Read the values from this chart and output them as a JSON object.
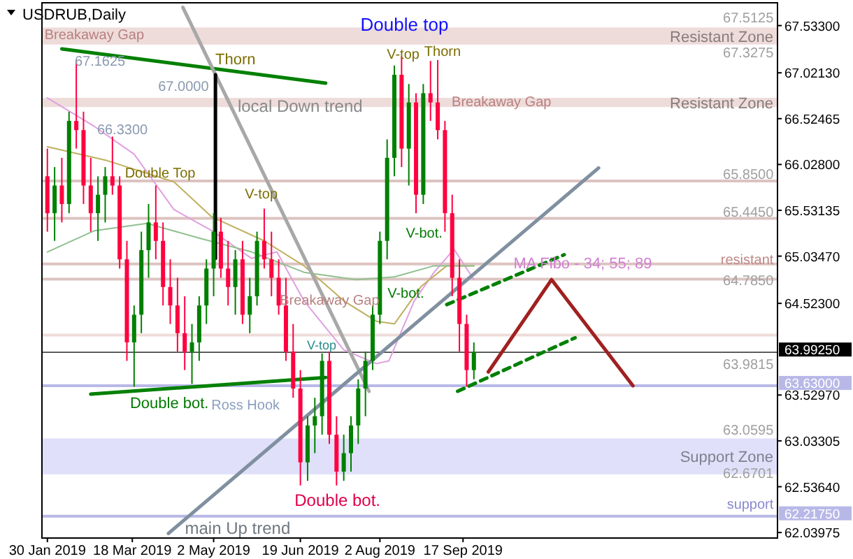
{
  "chart_data": {
    "type": "candlestick",
    "title": "USDRUB,Daily",
    "x": [
      "2019-01-30",
      "2019-02-03",
      "2019-02-07",
      "2019-02-11",
      "2019-02-15",
      "2019-02-19",
      "2019-02-23",
      "2019-02-27",
      "2019-03-03",
      "2019-03-07",
      "2019-03-11",
      "2019-03-15",
      "2019-03-19",
      "2019-03-23",
      "2019-03-27",
      "2019-03-31",
      "2019-04-04",
      "2019-04-08",
      "2019-04-12",
      "2019-04-16",
      "2019-04-20",
      "2019-04-24",
      "2019-04-28",
      "2019-05-02",
      "2019-05-06",
      "2019-05-10",
      "2019-05-14",
      "2019-05-18",
      "2019-05-22",
      "2019-05-26",
      "2019-05-30",
      "2019-06-03",
      "2019-06-07",
      "2019-06-11",
      "2019-06-15",
      "2019-06-19",
      "2019-06-23",
      "2019-06-27",
      "2019-07-01",
      "2019-07-05",
      "2019-07-09",
      "2019-07-13",
      "2019-07-17",
      "2019-07-21",
      "2019-07-25",
      "2019-07-29",
      "2019-08-02",
      "2019-08-06",
      "2019-08-10",
      "2019-08-14",
      "2019-08-18",
      "2019-08-22",
      "2019-08-26",
      "2019-08-30",
      "2019-09-03",
      "2019-09-07",
      "2019-09-11",
      "2019-09-15",
      "2019-09-19",
      "2019-09-23"
    ],
    "ohlc": [
      [
        65.9,
        66.2,
        65.3,
        65.5
      ],
      [
        65.5,
        66.0,
        65.2,
        65.8
      ],
      [
        65.8,
        66.1,
        65.4,
        65.6
      ],
      [
        65.6,
        66.6,
        65.5,
        66.5
      ],
      [
        66.5,
        67.1625,
        66.2,
        66.4
      ],
      [
        66.4,
        66.6,
        65.6,
        65.8
      ],
      [
        65.8,
        66.1,
        65.3,
        65.5
      ],
      [
        65.5,
        65.9,
        65.2,
        65.7
      ],
      [
        65.7,
        66.0,
        65.4,
        65.9
      ],
      [
        65.9,
        66.33,
        65.7,
        65.8
      ],
      [
        65.8,
        65.9,
        64.9,
        65.0
      ],
      [
        65.0,
        65.2,
        63.9,
        64.1
      ],
      [
        64.1,
        64.5,
        63.62,
        64.4
      ],
      [
        64.4,
        65.3,
        64.2,
        65.1
      ],
      [
        65.1,
        65.6,
        64.8,
        65.4
      ],
      [
        65.4,
        65.8,
        65.0,
        65.2
      ],
      [
        65.2,
        65.4,
        64.5,
        64.7
      ],
      [
        64.7,
        65.0,
        64.3,
        64.5
      ],
      [
        64.5,
        64.8,
        64.0,
        64.2
      ],
      [
        64.2,
        64.6,
        63.8,
        64.0
      ],
      [
        64.0,
        64.3,
        63.65,
        64.1
      ],
      [
        64.1,
        64.6,
        63.9,
        64.5
      ],
      [
        64.5,
        65.0,
        64.3,
        64.9
      ],
      [
        64.9,
        65.5,
        64.6,
        65.3
      ],
      [
        65.3,
        65.45,
        64.8,
        64.9
      ],
      [
        64.9,
        65.2,
        64.5,
        64.7
      ],
      [
        64.7,
        65.1,
        64.4,
        65.0
      ],
      [
        65.0,
        65.2,
        64.3,
        64.4
      ],
      [
        64.4,
        64.8,
        64.2,
        64.6
      ],
      [
        64.6,
        65.3,
        64.5,
        65.2
      ],
      [
        65.2,
        65.55,
        64.9,
        65.0
      ],
      [
        65.0,
        65.3,
        64.6,
        64.8
      ],
      [
        64.8,
        65.0,
        64.4,
        64.5
      ],
      [
        64.5,
        64.8,
        63.9,
        64.0
      ],
      [
        64.0,
        64.3,
        63.5,
        63.6
      ],
      [
        63.6,
        63.8,
        62.55,
        62.8
      ],
      [
        62.8,
        63.3,
        62.6,
        63.2
      ],
      [
        63.2,
        63.5,
        62.9,
        63.3
      ],
      [
        63.3,
        63.98,
        63.1,
        63.9
      ],
      [
        63.9,
        64.0,
        63.0,
        63.1
      ],
      [
        63.1,
        63.3,
        62.55,
        62.7
      ],
      [
        62.7,
        63.1,
        62.6,
        62.9
      ],
      [
        62.9,
        63.3,
        62.7,
        63.2
      ],
      [
        63.2,
        63.7,
        63.0,
        63.6
      ],
      [
        63.6,
        64.0,
        63.3,
        63.9
      ],
      [
        63.9,
        64.5,
        63.8,
        64.4
      ],
      [
        64.4,
        65.3,
        64.3,
        65.2
      ],
      [
        65.2,
        66.3,
        65.0,
        66.1
      ],
      [
        66.1,
        67.1,
        65.9,
        67.0
      ],
      [
        67.0,
        67.2,
        66.0,
        66.2
      ],
      [
        66.2,
        66.9,
        65.8,
        66.7
      ],
      [
        66.7,
        66.8,
        65.5,
        65.7
      ],
      [
        65.7,
        66.9,
        65.6,
        66.8
      ],
      [
        66.8,
        67.15,
        66.5,
        66.7
      ],
      [
        66.7,
        67.16,
        66.3,
        66.4
      ],
      [
        66.4,
        66.5,
        65.3,
        65.5
      ],
      [
        65.5,
        65.7,
        64.6,
        64.8
      ],
      [
        64.8,
        65.0,
        64.0,
        64.3
      ],
      [
        64.3,
        64.4,
        63.62,
        63.8
      ],
      [
        63.8,
        64.1,
        63.7,
        63.9925
      ]
    ],
    "colors": [
      "#ff0040",
      "#008000",
      "#ff0040",
      "#008000",
      "#ff0040",
      "#ff0040",
      "#ff0040",
      "#008000",
      "#008000",
      "#ff0040",
      "#ff0040",
      "#ff0040",
      "#008000",
      "#008000",
      "#008000",
      "#ff0040",
      "#ff0040",
      "#ff0040",
      "#ff0040",
      "#ff0040",
      "#008000",
      "#008000",
      "#008000",
      "#008000",
      "#ff0040",
      "#ff0040",
      "#008000",
      "#ff0040",
      "#008000",
      "#008000",
      "#ff0040",
      "#ff0040",
      "#ff0040",
      "#ff0040",
      "#ff0040",
      "#ff0040",
      "#008000",
      "#008000",
      "#008000",
      "#ff0040",
      "#ff0040",
      "#008000",
      "#008000",
      "#008000",
      "#008000",
      "#008000",
      "#008000",
      "#008000",
      "#008000",
      "#ff0040",
      "#008000",
      "#ff0040",
      "#008000",
      "#ff0040",
      "#ff0040",
      "#ff0040",
      "#ff0040",
      "#ff0040",
      "#ff0040",
      "#008000"
    ],
    "series": [
      {
        "type": "line",
        "color": "#e0a0e0",
        "x": [
          "2019-01-30",
          "2019-02-25",
          "2019-03-19",
          "2019-04-10",
          "2019-05-01",
          "2019-05-23",
          "2019-06-06",
          "2019-06-21",
          "2019-07-13",
          "2019-07-31",
          "2019-08-07",
          "2019-08-21",
          "2019-09-01",
          "2019-09-12",
          "2019-09-23"
        ],
        "values": [
          66.75,
          66.44,
          66.14,
          65.54,
          65.31,
          65.01,
          65.08,
          64.55,
          64.02,
          63.87,
          63.9,
          64.55,
          64.86,
          65.11,
          64.78
        ]
      },
      {
        "type": "line",
        "color": "#c0b060",
        "x": [
          "2019-01-30",
          "2019-03-04",
          "2019-04-10",
          "2019-05-01",
          "2019-05-30",
          "2019-06-21",
          "2019-07-13",
          "2019-07-31",
          "2019-08-10",
          "2019-08-25",
          "2019-09-08",
          "2019-09-23"
        ],
        "values": [
          66.22,
          66.07,
          65.84,
          65.46,
          65.2,
          64.93,
          64.55,
          64.33,
          64.3,
          64.71,
          64.93,
          64.93
        ]
      },
      {
        "type": "line",
        "color": "#90c090",
        "x": [
          "2019-01-30",
          "2019-02-25",
          "2019-03-26",
          "2019-04-24",
          "2019-05-23",
          "2019-06-21",
          "2019-07-20",
          "2019-08-10",
          "2019-09-01",
          "2019-09-23"
        ],
        "values": [
          65.08,
          65.31,
          65.39,
          65.23,
          65.08,
          64.86,
          64.78,
          64.81,
          64.93,
          64.93
        ]
      },
      {
        "type": "line",
        "color": "#008000",
        "x": [
          "2019-02-07",
          "2019-07-03"
        ],
        "values": [
          67.28,
          66.91
        ]
      },
      {
        "type": "line",
        "color": "#008000",
        "x": [
          "2019-02-23",
          "2019-07-03"
        ],
        "values": [
          63.54,
          63.72
        ]
      },
      {
        "type": "line",
        "color": "#a8a8a8",
        "x": [
          "2019-04-15",
          "2019-07-27"
        ],
        "values": [
          67.73,
          63.57
        ]
      },
      {
        "type": "line",
        "color": "#8090a0",
        "x": [
          "2019-04-07",
          "2019-12-01"
        ],
        "values": [
          62.03,
          65.99
        ]
      },
      {
        "type": "line",
        "color": "#a02020",
        "x": [
          "2019-10-01",
          "2019-11-05",
          "2019-12-20"
        ],
        "values": [
          63.78,
          64.78,
          63.63
        ]
      },
      {
        "type": "line",
        "color": "#008000",
        "line_style": "dashed",
        "x": [
          "2019-09-08",
          "2019-11-12"
        ],
        "values": [
          64.51,
          65.05
        ]
      },
      {
        "type": "line",
        "color": "#008000",
        "line_style": "dashed",
        "x": [
          "2019-09-14",
          "2019-11-18"
        ],
        "values": [
          63.57,
          64.15
        ]
      },
      {
        "type": "line",
        "color": "#000000",
        "x": [
          "2019-05-03",
          "2019-05-03"
        ],
        "values": [
          67.0,
          65.01
        ]
      }
    ],
    "xlim": [
      "2019-01-27",
      "2020-03-09"
    ],
    "xticks": [
      {
        "value": "2019-01-30",
        "label": "30 Jan 2019"
      },
      {
        "value": "2019-03-18",
        "label": "18 Mar 2019"
      },
      {
        "value": "2019-05-02",
        "label": "2 May 2019"
      },
      {
        "value": "2019-06-19",
        "label": "19 Jun 2019"
      },
      {
        "value": "2019-08-02",
        "label": "2 Aug 2019"
      },
      {
        "value": "2019-09-17",
        "label": "17 Sep 2019"
      }
    ],
    "ylim": [
      61.98,
      67.78
    ],
    "yticks": [
      {
        "value": 67.533,
        "label": "67.53300"
      },
      {
        "value": 67.0213,
        "label": "67.02130"
      },
      {
        "value": 66.52465,
        "label": "66.52465"
      },
      {
        "value": 66.028,
        "label": "66.02800"
      },
      {
        "value": 65.53135,
        "label": "65.53135"
      },
      {
        "value": 65.0347,
        "label": "65.03470"
      },
      {
        "value": 64.523,
        "label": "64.52300"
      },
      {
        "value": 63.5297,
        "label": "63.52970"
      },
      {
        "value": 63.03305,
        "label": "63.03305"
      },
      {
        "value": 62.5364,
        "label": "62.53640"
      },
      {
        "value": 62.03975,
        "label": "62.03975"
      }
    ],
    "bands": [
      {
        "axis": "y",
        "from": 67.3275,
        "to": 67.5125,
        "label": "Resistant Zone",
        "color": "#eedcda"
      },
      {
        "axis": "y",
        "from": 66.65,
        "to": 66.75,
        "label": "Resistant Zone",
        "color": "#eedcda"
      },
      {
        "axis": "y",
        "from": 62.6701,
        "to": 63.0595,
        "label": "Support Zone",
        "color": "#e0e0fa"
      }
    ],
    "ref_lines": [
      {
        "axis": "y",
        "value": 65.85,
        "label": null,
        "color": "#dcc4c0"
      },
      {
        "axis": "y",
        "value": 65.445,
        "label": null,
        "color": "#dcc4c0"
      },
      {
        "axis": "y",
        "value": 64.95,
        "label": null,
        "color": "#dcc4c0"
      },
      {
        "axis": "y",
        "value": 64.785,
        "label": null,
        "color": "#dcc4c0"
      },
      {
        "axis": "y",
        "value": 64.18,
        "label": null,
        "color": "#eedcda"
      },
      {
        "axis": "y",
        "value": 63.9925,
        "label": "63.99250",
        "color": "#000000"
      },
      {
        "axis": "y",
        "value": 63.63,
        "label": "63.63000",
        "color": "#b8b8e8"
      },
      {
        "axis": "y",
        "value": 62.2175,
        "label": "62.21750",
        "color": "#b8b8e8"
      }
    ],
    "annotations": [
      "67.1625",
      "66.3300",
      "67.0000",
      "Thorn",
      "local Down trend",
      "Double Top",
      "V-top",
      "Double bot.",
      "Ross Hook",
      "V-top",
      "Breakaway Gap",
      "Double bot.",
      "main Up trend",
      "V-top",
      "Thorn",
      "V-bot.",
      "V-bot.",
      "Breakaway Gap",
      "Breakaway Gap",
      "Double top",
      "MA Fibo - 34; 55; 89",
      "resistant",
      "support",
      "67.5125",
      "67.3275",
      "65.8500",
      "65.4450",
      "64.7850",
      "63.9815",
      "63.0595",
      "62.6701"
    ]
  }
}
